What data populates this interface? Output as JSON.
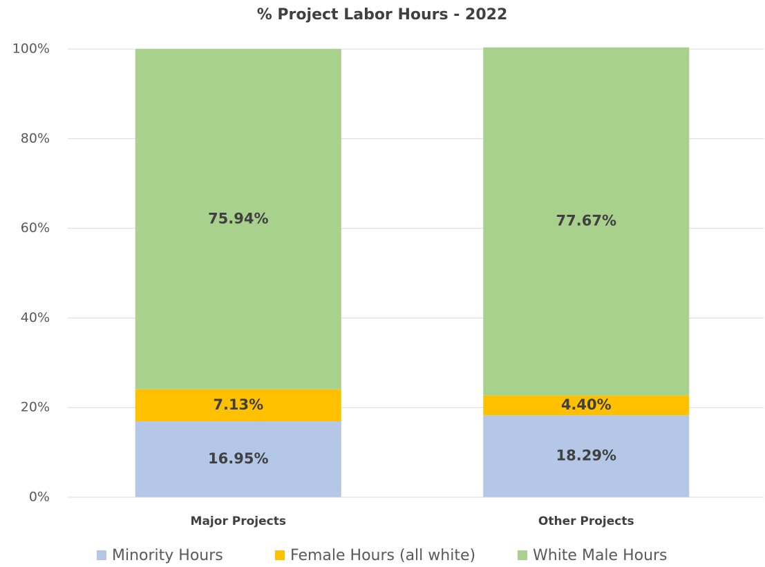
{
  "chart_data": {
    "type": "stacked_bar",
    "title": "% Project Labor Hours - 2022",
    "categories": [
      "Major Projects",
      "Other Projects"
    ],
    "series": [
      {
        "name": "Minority Hours",
        "color": "#b4c7e7",
        "values": [
          16.95,
          18.29
        ],
        "value_labels": [
          "16.95%",
          "18.29%"
        ]
      },
      {
        "name": "Female Hours (all white)",
        "color": "#ffc000",
        "values": [
          7.13,
          4.4
        ],
        "value_labels": [
          "7.13%",
          "4.40%"
        ]
      },
      {
        "name": "White Male Hours",
        "color": "#a9d18e",
        "values": [
          75.94,
          77.67
        ],
        "value_labels": [
          "75.94%",
          "77.67%"
        ]
      }
    ],
    "ylim": [
      0,
      100
    ],
    "yticks": [
      {
        "value": 0,
        "label": "0%"
      },
      {
        "value": 20,
        "label": "20%"
      },
      {
        "value": 40,
        "label": "40%"
      },
      {
        "value": 60,
        "label": "60%"
      },
      {
        "value": 80,
        "label": "80%"
      },
      {
        "value": 100,
        "label": "100%"
      }
    ],
    "grid": true,
    "legend": "bottom"
  }
}
